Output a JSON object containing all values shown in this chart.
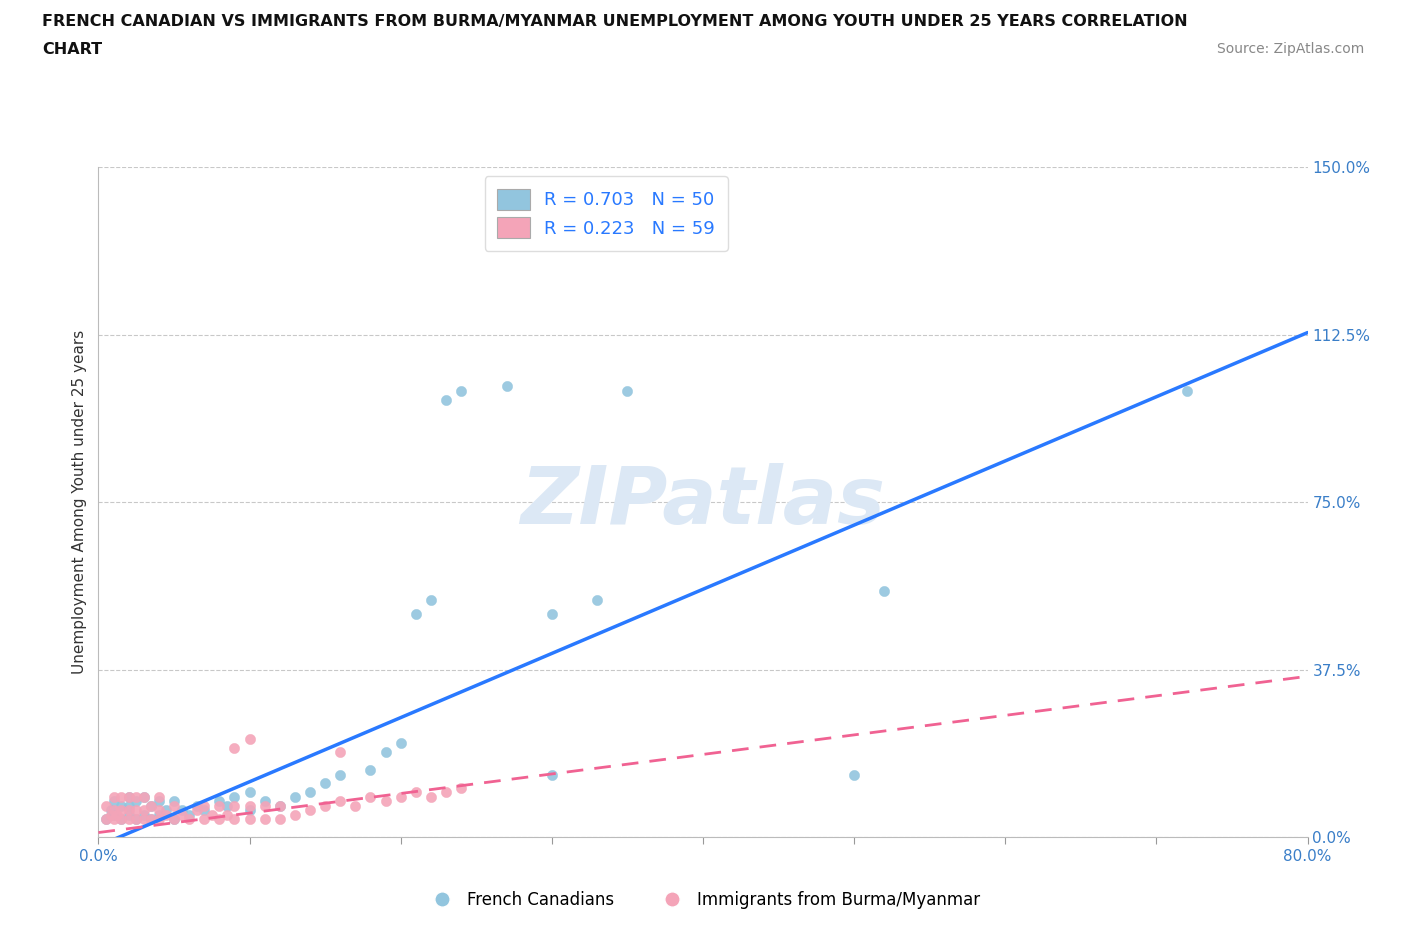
{
  "title_line1": "FRENCH CANADIAN VS IMMIGRANTS FROM BURMA/MYANMAR UNEMPLOYMENT AMONG YOUTH UNDER 25 YEARS CORRELATION",
  "title_line2": "CHART",
  "source_text": "Source: ZipAtlas.com",
  "ylabel": "Unemployment Among Youth under 25 years",
  "xlim": [
    0.0,
    0.8
  ],
  "ylim": [
    0.0,
    1.5
  ],
  "xticks": [
    0.0,
    0.1,
    0.2,
    0.3,
    0.4,
    0.5,
    0.6,
    0.7,
    0.8
  ],
  "yticks": [
    0.0,
    0.375,
    0.75,
    1.125,
    1.5
  ],
  "yticklabels": [
    "0.0%",
    "37.5%",
    "75.0%",
    "112.5%",
    "150.0%"
  ],
  "blue_color": "#92c5de",
  "pink_color": "#f4a4b8",
  "blue_line_color": "#2979ff",
  "pink_line_color": "#f06292",
  "grid_color": "#bbbbbb",
  "watermark_color": "#dce8f5",
  "R1": 0.703,
  "N1": 50,
  "R2": 0.223,
  "N2": 59,
  "legend1_label": "French Canadians",
  "legend2_label": "Immigrants from Burma/Myanmar",
  "blue_line_x0": 0.0,
  "blue_line_y0": -0.02,
  "blue_line_x1": 0.8,
  "blue_line_y1": 1.13,
  "pink_line_x0": 0.0,
  "pink_line_y0": 0.01,
  "pink_line_x1": 0.8,
  "pink_line_y1": 0.36,
  "blue_scatter_x": [
    0.005,
    0.008,
    0.01,
    0.01,
    0.015,
    0.015,
    0.02,
    0.02,
    0.02,
    0.025,
    0.025,
    0.03,
    0.03,
    0.035,
    0.035,
    0.04,
    0.04,
    0.045,
    0.05,
    0.05,
    0.055,
    0.06,
    0.065,
    0.07,
    0.08,
    0.085,
    0.09,
    0.1,
    0.1,
    0.11,
    0.12,
    0.13,
    0.14,
    0.15,
    0.16,
    0.18,
    0.19,
    0.2,
    0.21,
    0.22,
    0.23,
    0.24,
    0.27,
    0.3,
    0.3,
    0.33,
    0.35,
    0.5,
    0.52,
    0.72
  ],
  "blue_scatter_y": [
    0.04,
    0.06,
    0.05,
    0.08,
    0.04,
    0.07,
    0.05,
    0.07,
    0.09,
    0.04,
    0.08,
    0.05,
    0.09,
    0.04,
    0.07,
    0.05,
    0.08,
    0.06,
    0.04,
    0.08,
    0.06,
    0.05,
    0.07,
    0.06,
    0.08,
    0.07,
    0.09,
    0.06,
    0.1,
    0.08,
    0.07,
    0.09,
    0.1,
    0.12,
    0.14,
    0.15,
    0.19,
    0.21,
    0.5,
    0.53,
    0.98,
    1.0,
    1.01,
    0.14,
    0.5,
    0.53,
    1.0,
    0.14,
    0.55,
    1.0
  ],
  "pink_scatter_x": [
    0.005,
    0.005,
    0.008,
    0.01,
    0.01,
    0.01,
    0.012,
    0.015,
    0.015,
    0.015,
    0.02,
    0.02,
    0.02,
    0.025,
    0.025,
    0.025,
    0.03,
    0.03,
    0.03,
    0.035,
    0.035,
    0.04,
    0.04,
    0.04,
    0.045,
    0.05,
    0.05,
    0.055,
    0.06,
    0.065,
    0.07,
    0.07,
    0.075,
    0.08,
    0.08,
    0.085,
    0.09,
    0.09,
    0.1,
    0.1,
    0.11,
    0.11,
    0.12,
    0.12,
    0.13,
    0.14,
    0.15,
    0.16,
    0.17,
    0.18,
    0.19,
    0.2,
    0.21,
    0.22,
    0.23,
    0.24,
    0.09,
    0.1,
    0.16
  ],
  "pink_scatter_y": [
    0.04,
    0.07,
    0.05,
    0.04,
    0.06,
    0.09,
    0.05,
    0.04,
    0.06,
    0.09,
    0.04,
    0.06,
    0.09,
    0.04,
    0.06,
    0.09,
    0.04,
    0.06,
    0.09,
    0.04,
    0.07,
    0.04,
    0.06,
    0.09,
    0.05,
    0.04,
    0.07,
    0.05,
    0.04,
    0.06,
    0.04,
    0.07,
    0.05,
    0.04,
    0.07,
    0.05,
    0.04,
    0.07,
    0.04,
    0.07,
    0.04,
    0.07,
    0.04,
    0.07,
    0.05,
    0.06,
    0.07,
    0.08,
    0.07,
    0.09,
    0.08,
    0.09,
    0.1,
    0.09,
    0.1,
    0.11,
    0.2,
    0.22,
    0.19
  ]
}
